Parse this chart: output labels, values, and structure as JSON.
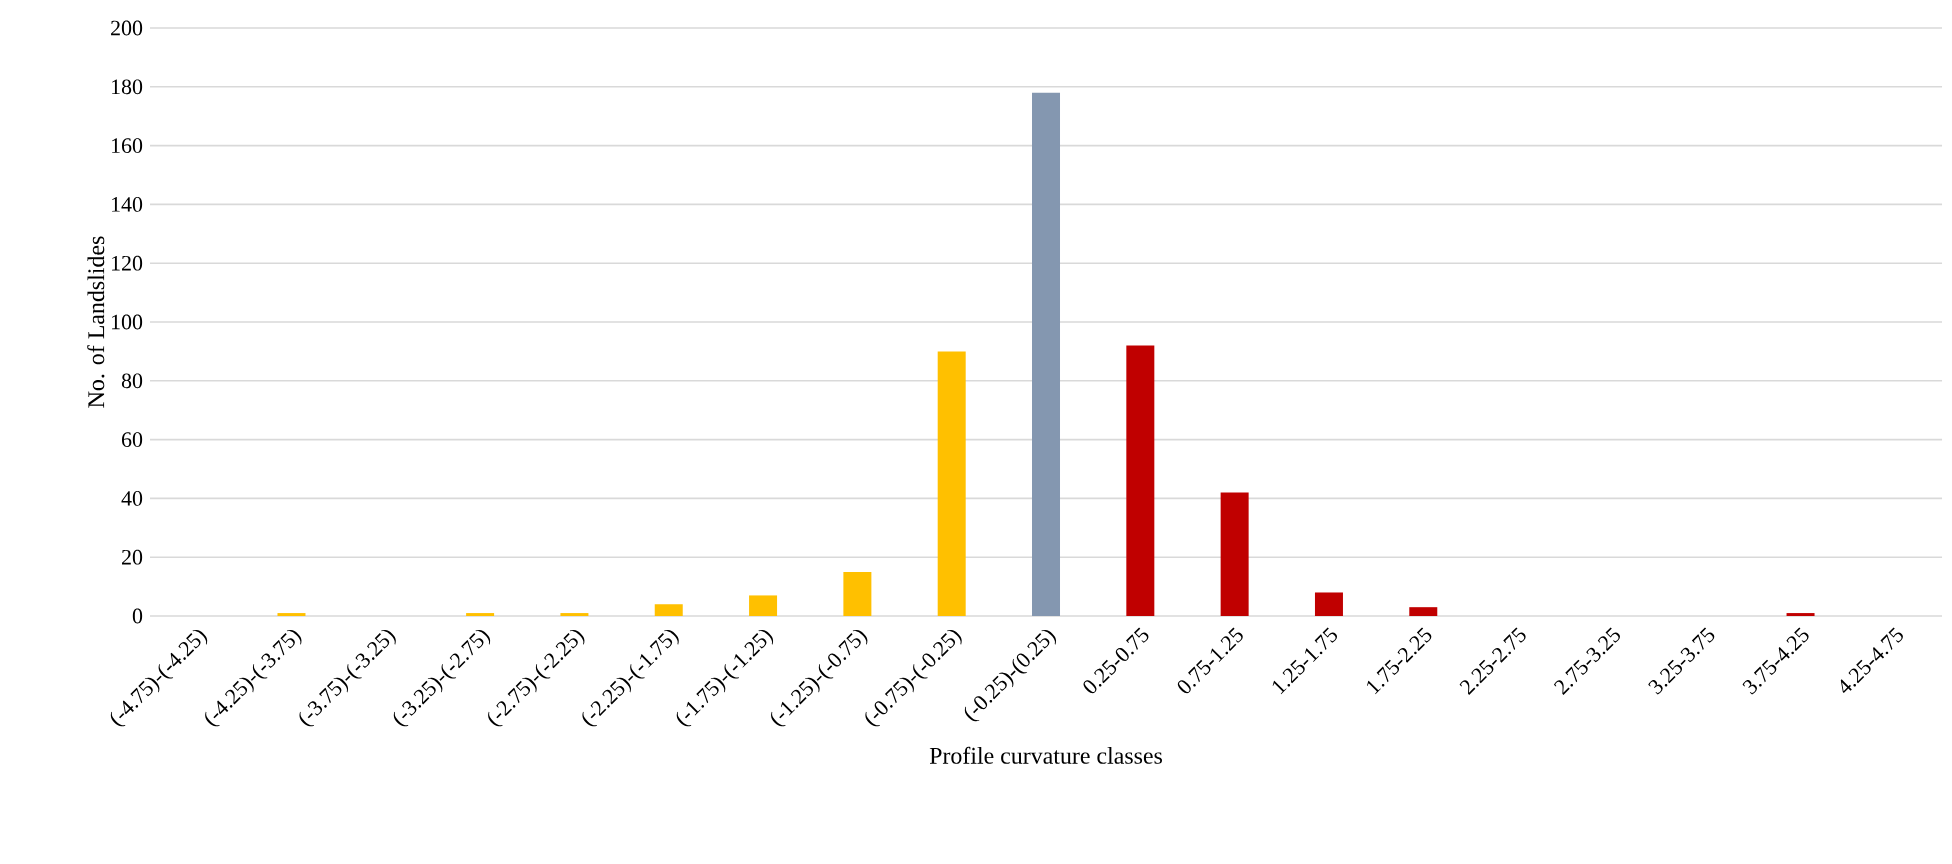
{
  "chart_data": {
    "type": "bar",
    "xlabel": "Profile curvature classes",
    "ylabel": "No. of Landslides",
    "categories": [
      "(-4.75)-(-4.25)",
      "(-4.25)-(-3.75)",
      "(-3.75)-(-3.25)",
      "(-3.25)-(-2.75)",
      "(-2.75)-(-2.25)",
      "(-2.25)-(-1.75)",
      "(-1.75)-(-1.25)",
      "(-1.25)-(-0.75)",
      "(-0.75)-(-0.25)",
      "(-0.25)-(0.25)",
      "0.25-0.75",
      "0.75-1.25",
      "1.25-1.75",
      "1.75-2.25",
      "2.25-2.75",
      "2.75-3.25",
      "3.25-3.75",
      "3.75-4.25",
      "4.25-4.75"
    ],
    "values": [
      0,
      1,
      0,
      1,
      1,
      4,
      7,
      15,
      90,
      178,
      92,
      42,
      8,
      3,
      0,
      0,
      0,
      1,
      0
    ],
    "colors": [
      "#ffc000",
      "#ffc000",
      "#ffc000",
      "#ffc000",
      "#ffc000",
      "#ffc000",
      "#ffc000",
      "#ffc000",
      "#ffc000",
      "#8497b0",
      "#c00000",
      "#c00000",
      "#c00000",
      "#c00000",
      "#c00000",
      "#c00000",
      "#c00000",
      "#c00000",
      "#c00000"
    ],
    "ylim": [
      0,
      200
    ],
    "yticks": [
      0,
      20,
      40,
      60,
      80,
      100,
      120,
      140,
      160,
      180,
      200
    ],
    "grid": "y"
  }
}
